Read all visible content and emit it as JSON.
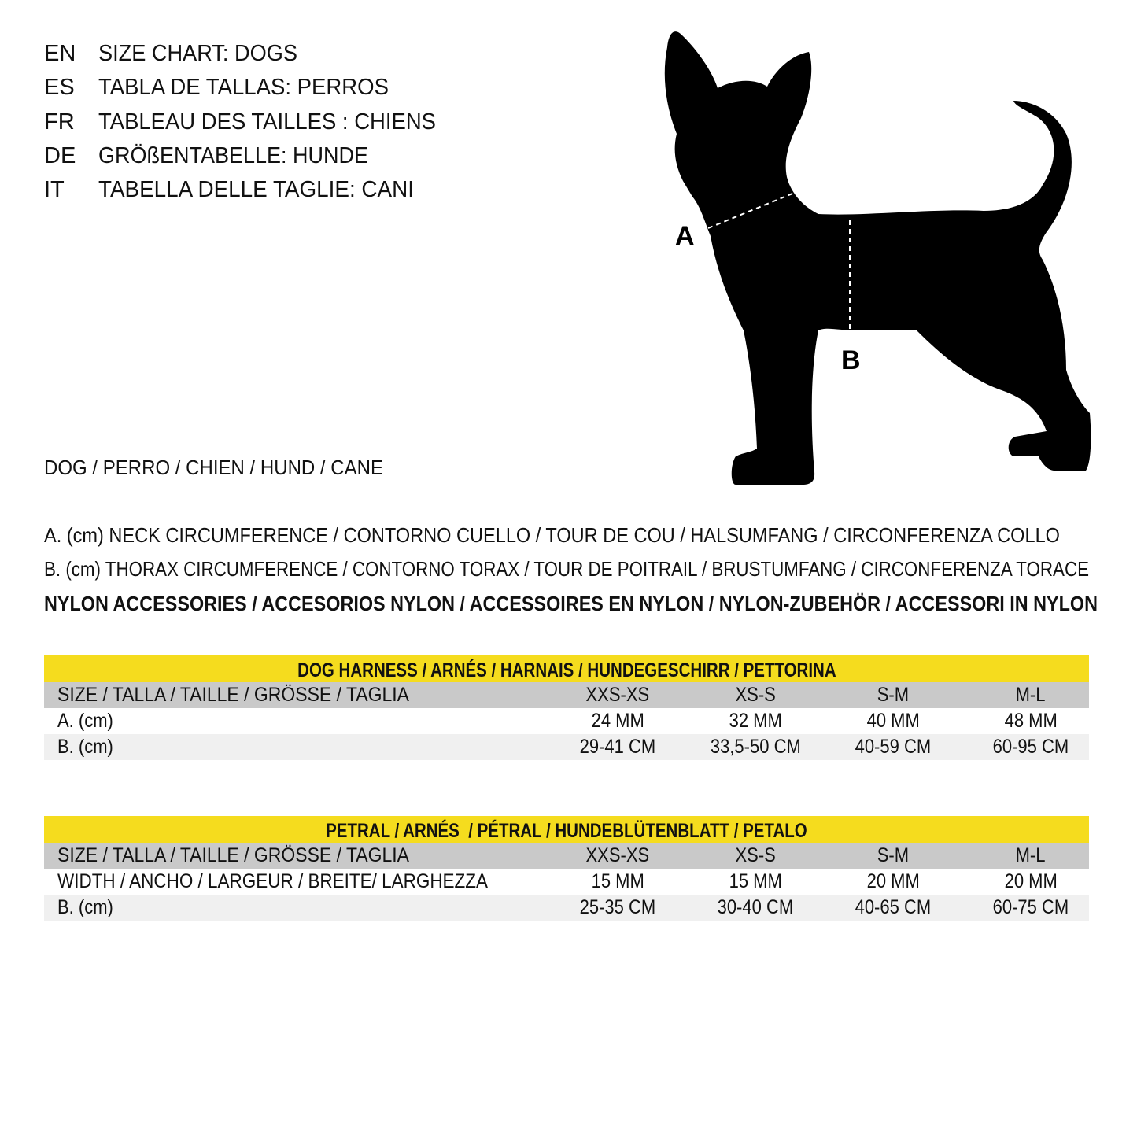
{
  "titles": [
    {
      "code": "EN",
      "text": "SIZE CHART: DOGS"
    },
    {
      "code": "ES",
      "text": "TABLA DE TALLAS: PERROS"
    },
    {
      "code": "FR",
      "text": "TABLEAU DES TAILLES : CHIENS"
    },
    {
      "code": "DE",
      "text": "GRÖßENTABELLE: HUNDE"
    },
    {
      "code": "IT",
      "text": "TABELLA DELLE TAGLIE: CANI"
    }
  ],
  "animal_label": "DOG / PERRO / CHIEN / HUND / CANE",
  "diagram": {
    "label_a": "A",
    "label_b": "B"
  },
  "legend": {
    "a": "A. (cm) NECK CIRCUMFERENCE / CONTORNO CUELLO / TOUR DE COU / HALSUMFANG / CIRCONFERENZA COLLO",
    "b": "B. (cm) THORAX CIRCUMFERENCE / CONTORNO TORAX / TOUR DE POITRAIL / BRUSTUMFANG / CIRCONFERENZA TORACE",
    "material": "NYLON ACCESSORIES / ACCESORIOS NYLON / ACCESSOIRES EN NYLON / NYLON-ZUBEHÖR / ACCESSORI IN NYLON"
  },
  "colors": {
    "title_bar": "#f5dc1e",
    "size_row": "#c9c9c9",
    "alt_row": "#f0f0f0"
  },
  "tables": [
    {
      "title": "DOG HARNESS / ARNÉS / HARNAIS / HUNDEGESCHIRR / PETTORINA",
      "rows": [
        {
          "label": "SIZE / TALLA / TAILLE / GRÖSSE / TAGLIA",
          "values": [
            "XXS-XS",
            "XS-S",
            "S-M",
            "M-L"
          ]
        },
        {
          "label": "A. (cm)",
          "values": [
            "24 MM",
            "32 MM",
            "40 MM",
            "48 MM"
          ]
        },
        {
          "label": "B. (cm)",
          "values": [
            "29-41 CM",
            "33,5-50 CM",
            "40-59 CM",
            "60-95 CM"
          ]
        }
      ]
    },
    {
      "title": "PETRAL / ARNÉS  / PÉTRAL / HUNDEBLÜTENBLATT / PETALO",
      "rows": [
        {
          "label": "SIZE / TALLA / TAILLE / GRÖSSE / TAGLIA",
          "values": [
            "XXS-XS",
            "XS-S",
            "S-M",
            "M-L"
          ]
        },
        {
          "label": "WIDTH / ANCHO / LARGEUR / BREITE/ LARGHEZZA",
          "values": [
            "15 MM",
            "15 MM",
            "20 MM",
            "20 MM"
          ]
        },
        {
          "label": "B. (cm)",
          "values": [
            "25-35 CM",
            "30-40 CM",
            "40-65 CM",
            "60-75 CM"
          ]
        }
      ]
    }
  ]
}
